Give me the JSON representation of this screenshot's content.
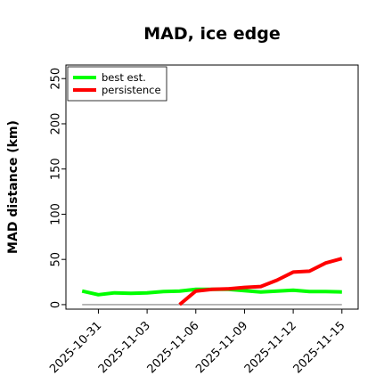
{
  "chart_data": {
    "type": "line",
    "title": "MAD, ice edge",
    "xlabel": "",
    "ylabel": "MAD distance (km)",
    "x_ticks": [
      "2025-10-31",
      "2025-11-03",
      "2025-11-06",
      "2025-11-09",
      "2025-11-12",
      "2025-11-15"
    ],
    "y_ticks": [
      "0",
      "50",
      "100",
      "150",
      "200",
      "250"
    ],
    "xlim": [
      "2025-10-29",
      "2025-11-16"
    ],
    "ylim": [
      -5,
      265
    ],
    "grid": false,
    "legend_position": "top-left",
    "reference_line": {
      "y": 0,
      "color": "#808080"
    },
    "series": [
      {
        "name": "best est.",
        "color": "#00ff00",
        "x": [
          "2025-10-30",
          "2025-10-31",
          "2025-11-01",
          "2025-11-02",
          "2025-11-03",
          "2025-11-04",
          "2025-11-05",
          "2025-11-06",
          "2025-11-07",
          "2025-11-08",
          "2025-11-09",
          "2025-11-10",
          "2025-11-11",
          "2025-11-12",
          "2025-11-13",
          "2025-11-14",
          "2025-11-15"
        ],
        "values": [
          15,
          11,
          13,
          12.5,
          13,
          14.5,
          15,
          17,
          17,
          17,
          15.5,
          14,
          15,
          16,
          14.5,
          14.5,
          14
        ]
      },
      {
        "name": "persistence",
        "color": "#ff0000",
        "x": [
          "2025-11-05",
          "2025-11-06",
          "2025-11-07",
          "2025-11-08",
          "2025-11-09",
          "2025-11-10",
          "2025-11-11",
          "2025-11-12",
          "2025-11-13",
          "2025-11-14",
          "2025-11-15"
        ],
        "values": [
          0,
          15,
          17,
          17.5,
          19,
          20,
          27,
          36,
          37,
          46,
          51
        ]
      }
    ]
  }
}
